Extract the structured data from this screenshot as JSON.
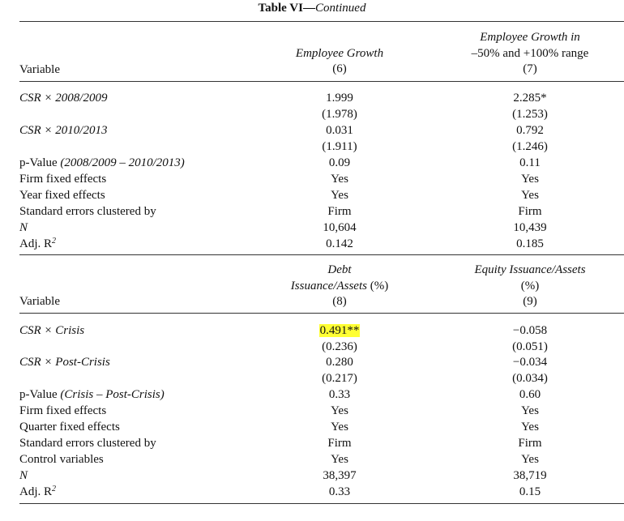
{
  "table_title": {
    "lead": "Table VI",
    "dash": "—",
    "continued": "Continued"
  },
  "panel1": {
    "header": {
      "variable": "Variable",
      "col6": {
        "title": "Employee Growth",
        "num": "(6)"
      },
      "col7": {
        "title_line1": "Employee Growth in",
        "title_line2": "–50% and +100% range",
        "num": "(7)"
      }
    },
    "rows": [
      {
        "label": "CSR × 2008/2009",
        "c6": "1.999",
        "c7": "2.285*"
      },
      {
        "label": "",
        "c6": "(1.978)",
        "c7": "(1.253)"
      },
      {
        "label": "CSR × 2010/2013",
        "c6": "0.031",
        "c7": "0.792"
      },
      {
        "label": "",
        "c6": "(1.911)",
        "c7": "(1.246)"
      },
      {
        "label_plain": "p-Value ",
        "label_it": "(2008/2009 – 2010/2013)",
        "c6": "0.09",
        "c7": "0.11"
      },
      {
        "label": "Firm fixed effects",
        "c6": "Yes",
        "c7": "Yes"
      },
      {
        "label": "Year fixed effects",
        "c6": "Yes",
        "c7": "Yes"
      },
      {
        "label": "Standard errors clustered by",
        "c6": "Firm",
        "c7": "Firm"
      },
      {
        "label": "N",
        "c6": "10,604",
        "c7": "10,439"
      },
      {
        "label": "Adj. R",
        "sup": "2",
        "c6": "0.142",
        "c7": "0.185"
      }
    ]
  },
  "panel2": {
    "header": {
      "variable": "Variable",
      "col8": {
        "title_line1": "Debt",
        "title_line2": "Issuance/Assets (%)",
        "num": "(8)"
      },
      "col9": {
        "title_line1": "Equity Issuance/Assets",
        "title_line2": "(%)",
        "num": "(9)"
      }
    },
    "rows": [
      {
        "label": "CSR × Crisis",
        "c8": "0.491**",
        "c9": "−0.058"
      },
      {
        "label": "",
        "c8": "(0.236)",
        "c9": "(0.051)"
      },
      {
        "label": "CSR × Post-Crisis",
        "c8": "0.280",
        "c9": "−0.034"
      },
      {
        "label": "",
        "c8": "(0.217)",
        "c9": "(0.034)"
      },
      {
        "label_plain": "p-Value ",
        "label_it": "(Crisis – Post-Crisis)",
        "c8": "0.33",
        "c9": "0.60"
      },
      {
        "label": "Firm fixed effects",
        "c8": "Yes",
        "c9": "Yes"
      },
      {
        "label": "Quarter fixed effects",
        "c8": "Yes",
        "c9": "Yes"
      },
      {
        "label": "Standard errors clustered by",
        "c8": "Firm",
        "c9": "Firm"
      },
      {
        "label": "Control variables",
        "c8": "Yes",
        "c9": "Yes"
      },
      {
        "label": "N",
        "c8": "38,397",
        "c9": "38,719"
      },
      {
        "label": "Adj. R",
        "sup": "2",
        "c8": "0.33",
        "c9": "0.15"
      }
    ]
  },
  "highlight_color": "#ffff33"
}
